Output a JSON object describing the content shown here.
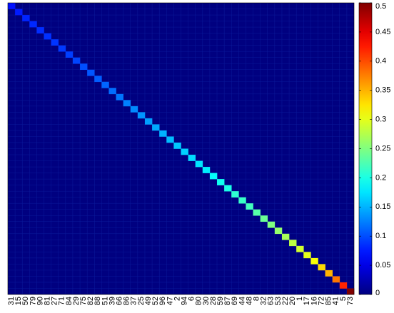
{
  "chart_data": {
    "type": "heatmap",
    "categories": [
      "31",
      "15",
      "50",
      "79",
      "90",
      "81",
      "27",
      "71",
      "84",
      "29",
      "75",
      "82",
      "88",
      "51",
      "39",
      "66",
      "86",
      "37",
      "25",
      "49",
      "52",
      "96",
      "47",
      "2",
      "94",
      "6",
      "80",
      "30",
      "28",
      "59",
      "87",
      "69",
      "44",
      "48",
      "8",
      "32",
      "63",
      "53",
      "22",
      "20",
      "1",
      "17",
      "16",
      "72",
      "85",
      "41",
      "5",
      "73"
    ],
    "diagonal": [
      0.07,
      0.075,
      0.08,
      0.082,
      0.084,
      0.086,
      0.088,
      0.09,
      0.093,
      0.096,
      0.1,
      0.104,
      0.108,
      0.112,
      0.116,
      0.12,
      0.125,
      0.13,
      0.135,
      0.14,
      0.145,
      0.15,
      0.155,
      0.16,
      0.165,
      0.17,
      0.175,
      0.18,
      0.19,
      0.195,
      0.2,
      0.21,
      0.215,
      0.22,
      0.23,
      0.24,
      0.25,
      0.26,
      0.27,
      0.28,
      0.29,
      0.3,
      0.31,
      0.33,
      0.35,
      0.38,
      0.42,
      0.5
    ],
    "off_diagonal_value": 0.0,
    "colorbar": {
      "min": 0,
      "max": 0.5,
      "colormap": "jet",
      "ticks": [
        "0",
        "0.05",
        "0.1",
        "0.15",
        "0.2",
        "0.25",
        "0.3",
        "0.35",
        "0.4",
        "0.45",
        "0.5"
      ]
    }
  }
}
